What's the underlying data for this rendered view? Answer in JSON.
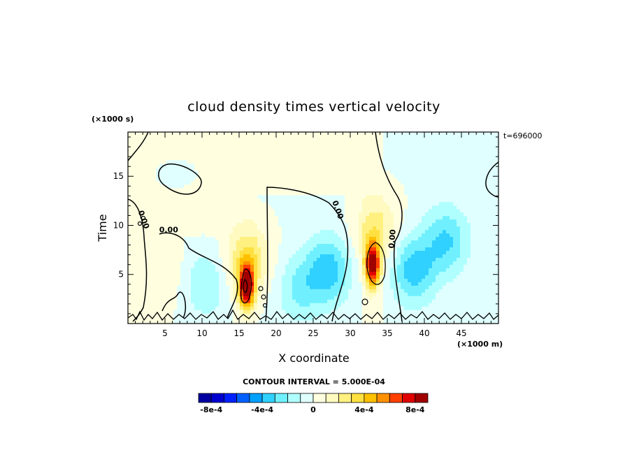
{
  "chart_data": {
    "type": "heatmap",
    "title": "cloud density times vertical velocity",
    "xlabel": "X coordinate",
    "ylabel": "Time",
    "x_unit_label": "(×1000 m)",
    "y_unit_label": "(×1000 s)",
    "time_stamp": "t=696000",
    "xlim": [
      0,
      50
    ],
    "ylim": [
      0,
      19.5
    ],
    "x_ticks": [
      "5",
      "10",
      "15",
      "20",
      "25",
      "30",
      "35",
      "40",
      "45"
    ],
    "x_tick_values": [
      5,
      10,
      15,
      20,
      25,
      30,
      35,
      40,
      45
    ],
    "y_ticks": [
      "5",
      "10",
      "15"
    ],
    "y_tick_values": [
      5,
      10,
      15
    ],
    "contour_interval_text": "CONTOUR INTERVAL = 5.000E-04",
    "zero_contour_label": "0.00",
    "zero_contour_label_positions": [
      [
        1.8,
        10.5
      ],
      [
        5.5,
        9.3
      ],
      [
        28.0,
        11.5
      ],
      [
        36.0,
        8.6
      ]
    ],
    "grid": false,
    "colorbar": {
      "colors": [
        "#0000a0",
        "#0000d0",
        "#0020ff",
        "#0060ff",
        "#00a0ff",
        "#30d0ff",
        "#70f0ff",
        "#b0ffff",
        "#e0ffff",
        "#ffffe0",
        "#fffac0",
        "#fff080",
        "#ffe040",
        "#ffc000",
        "#ff9000",
        "#ff4000",
        "#e00000",
        "#a00000"
      ],
      "labels": [
        "-8e-4",
        "-4e-4",
        "0",
        "4e-4",
        "8e-4"
      ],
      "label_values": [
        -0.0008,
        -0.0004,
        0,
        0.0004,
        0.0008
      ]
    },
    "field_features": [
      {
        "x": 16.0,
        "y": 3.8,
        "peak": 0.0009
      },
      {
        "x": 33.0,
        "y": 6.0,
        "peak": 0.0009
      },
      {
        "x": 16.2,
        "y": 6.5,
        "peak": 0.0003
      },
      {
        "x": 33.5,
        "y": 9.5,
        "peak": 0.00025
      },
      {
        "x": 27.0,
        "y": 5.5,
        "peak": -0.00035
      },
      {
        "x": 23.0,
        "y": 3.5,
        "peak": -0.0002
      },
      {
        "x": 38.5,
        "y": 5.5,
        "peak": -0.00035
      },
      {
        "x": 43.0,
        "y": 8.5,
        "peak": -0.0003
      },
      {
        "x": 10.5,
        "y": 4.0,
        "peak": -0.0002
      },
      {
        "x": 4.5,
        "y": 5.5,
        "peak": 0.0001
      }
    ]
  }
}
